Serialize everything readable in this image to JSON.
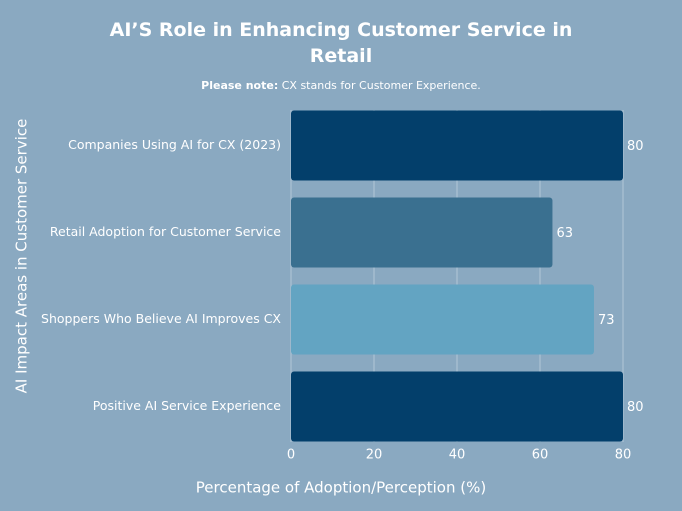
{
  "chart_data": {
    "type": "bar",
    "orientation": "horizontal",
    "title": "AI’S Role in Enhancing Customer Service in Retail",
    "subtitle": {
      "label": "Please note:",
      "text": "CX stands for Customer Experience."
    },
    "x_label": "Percentage of Adoption/Perception (%)",
    "y_label": "AI Impact Areas in Customer Service",
    "categories": [
      "Companies Using AI for CX (2023)",
      "Retail Adoption for Customer Service",
      "Shoppers Who Believe AI Improves CX",
      "Positive AI Service Experience"
    ],
    "values": [
      80,
      63,
      73,
      80
    ],
    "colors": [
      "#033f6b",
      "#3a7090",
      "#63a4c2",
      "#033f6b"
    ],
    "xlim": [
      0,
      80
    ],
    "xticks": [
      0,
      20,
      40,
      60,
      80
    ],
    "grid": true
  }
}
